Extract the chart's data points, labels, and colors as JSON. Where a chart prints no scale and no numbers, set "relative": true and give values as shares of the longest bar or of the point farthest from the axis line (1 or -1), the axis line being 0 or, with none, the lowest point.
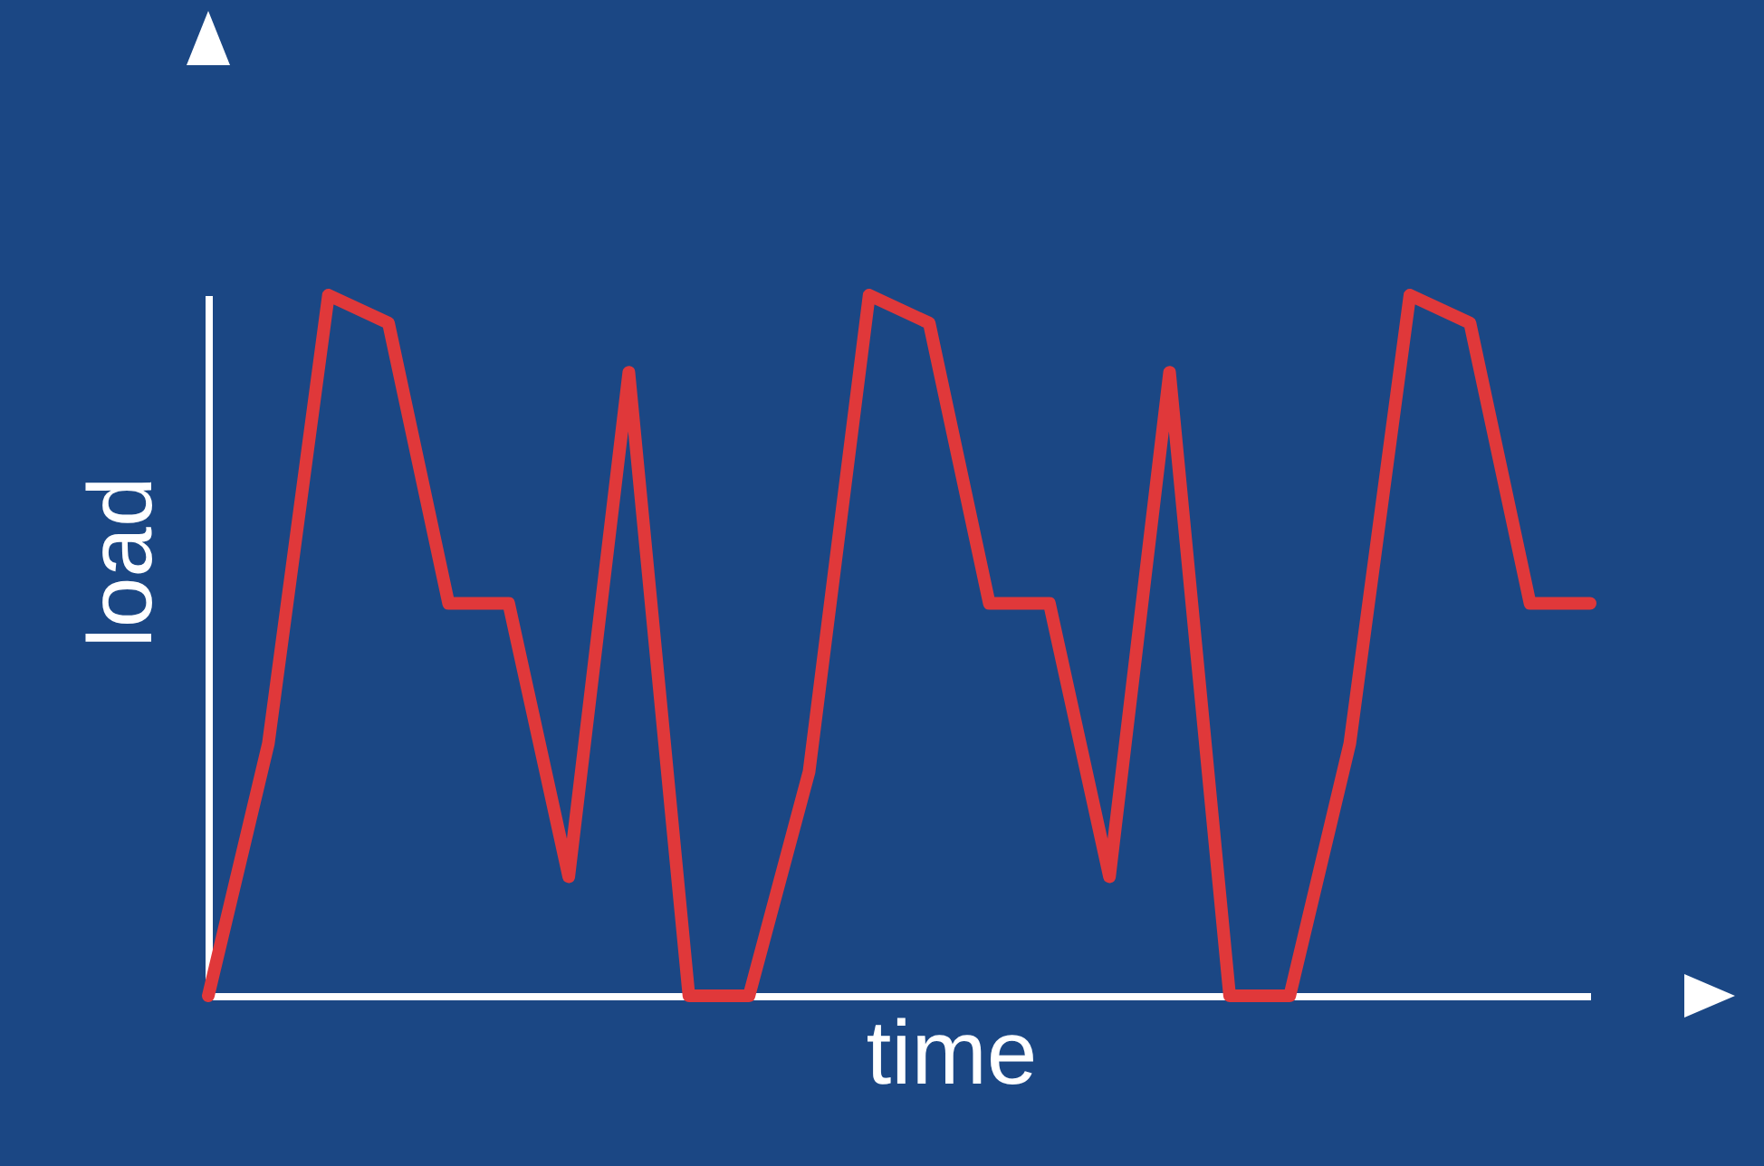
{
  "chart_data": {
    "type": "line",
    "xlabel": "time",
    "ylabel": "load",
    "relative": true,
    "tick_labels": false,
    "line_style": "solid",
    "categories": [
      null,
      null,
      null,
      null,
      null,
      null,
      null,
      null,
      null,
      null,
      null,
      null,
      null,
      null,
      null,
      null,
      null,
      null,
      null,
      null,
      null,
      null,
      null,
      null
    ],
    "series": [
      {
        "color": "#e0383a",
        "values": [
          0,
          0.36,
          1,
          0.96,
          0.56,
          0.56,
          0.17,
          0.89,
          0,
          0,
          0.32,
          1,
          0.96,
          0.56,
          0.56,
          0.17,
          0.89,
          0,
          0,
          0.36,
          1,
          0.96,
          0.56,
          0.56
        ]
      }
    ]
  }
}
